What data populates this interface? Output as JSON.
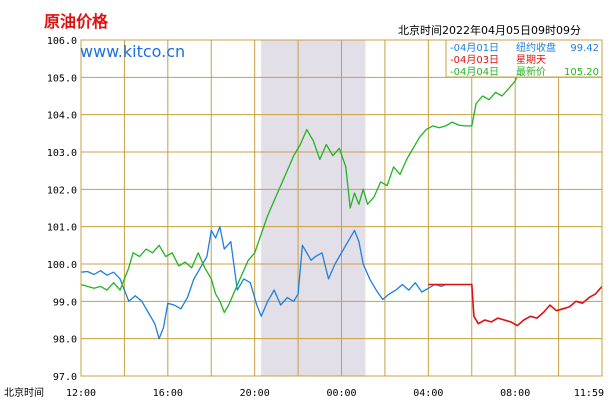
{
  "chart_data": {
    "type": "line",
    "title": "原油价格",
    "watermark": "www.kitco.cn",
    "timestamp": "北京时间2022年04月05日09时09分",
    "xlabel": "北京时间",
    "y_ticks": [
      "106.0",
      "105.0",
      "104.0",
      "103.0",
      "102.0",
      "101.0",
      "100.0",
      "99.0",
      "98.0",
      "97.0"
    ],
    "ylim": [
      97.0,
      106.0
    ],
    "x_ticks": [
      "12:00",
      "16:00",
      "20:00",
      "00:00",
      "04:00",
      "08:00",
      "11:59"
    ],
    "x_hours": [
      0,
      4,
      8,
      12,
      16,
      20,
      24
    ],
    "shaded_range_hours": [
      8.3,
      13.1
    ],
    "grid": true,
    "legend_position": "top-right",
    "legend": [
      {
        "date": "04月01日",
        "label": "纽约收盘",
        "value": "99.42",
        "color": "#1e7fe0"
      },
      {
        "date": "04月03日",
        "label": "星期天",
        "value": "",
        "color": "#e01010"
      },
      {
        "date": "04月04日",
        "label": "最新价",
        "value": "105.20",
        "color": "#22b422"
      }
    ],
    "series": [
      {
        "name": "04月01日",
        "color": "#1e7fe0",
        "points": [
          [
            0,
            99.78
          ],
          [
            0.3,
            99.8
          ],
          [
            0.6,
            99.72
          ],
          [
            0.9,
            99.82
          ],
          [
            1.2,
            99.7
          ],
          [
            1.5,
            99.78
          ],
          [
            1.8,
            99.6
          ],
          [
            2.0,
            99.3
          ],
          [
            2.2,
            99.0
          ],
          [
            2.5,
            99.15
          ],
          [
            2.8,
            99.0
          ],
          [
            3.1,
            98.7
          ],
          [
            3.4,
            98.4
          ],
          [
            3.6,
            98.0
          ],
          [
            3.8,
            98.3
          ],
          [
            4.0,
            98.95
          ],
          [
            4.3,
            98.9
          ],
          [
            4.6,
            98.8
          ],
          [
            4.9,
            99.1
          ],
          [
            5.2,
            99.6
          ],
          [
            5.5,
            99.9
          ],
          [
            5.8,
            100.2
          ],
          [
            6.0,
            100.9
          ],
          [
            6.2,
            100.7
          ],
          [
            6.4,
            101.0
          ],
          [
            6.6,
            100.4
          ],
          [
            6.9,
            100.6
          ],
          [
            7.2,
            99.3
          ],
          [
            7.5,
            99.6
          ],
          [
            7.8,
            99.5
          ],
          [
            8.1,
            98.9
          ],
          [
            8.3,
            98.6
          ],
          [
            8.6,
            99.0
          ],
          [
            8.9,
            99.3
          ],
          [
            9.2,
            98.9
          ],
          [
            9.5,
            99.1
          ],
          [
            9.8,
            99.0
          ],
          [
            10.0,
            99.2
          ],
          [
            10.2,
            100.5
          ],
          [
            10.4,
            100.3
          ],
          [
            10.6,
            100.1
          ],
          [
            10.8,
            100.2
          ],
          [
            11.1,
            100.3
          ],
          [
            11.4,
            99.6
          ],
          [
            11.7,
            100.0
          ],
          [
            12.0,
            100.3
          ],
          [
            12.3,
            100.6
          ],
          [
            12.6,
            100.9
          ],
          [
            12.8,
            100.6
          ],
          [
            13.0,
            100.0
          ],
          [
            13.3,
            99.6
          ],
          [
            13.6,
            99.3
          ],
          [
            13.9,
            99.05
          ],
          [
            14.2,
            99.2
          ],
          [
            14.5,
            99.3
          ],
          [
            14.8,
            99.45
          ],
          [
            15.1,
            99.3
          ],
          [
            15.4,
            99.5
          ],
          [
            15.7,
            99.25
          ],
          [
            16.0,
            99.35
          ],
          [
            16.3,
            99.45
          ],
          [
            16.6,
            99.4
          ],
          [
            16.8,
            99.45
          ]
        ]
      },
      {
        "name": "04月03日",
        "color": "#e01010",
        "points": [
          [
            16.0,
            99.45
          ],
          [
            16.8,
            99.45
          ],
          [
            17.6,
            99.45
          ],
          [
            18.0,
            99.45
          ],
          [
            18.1,
            98.6
          ],
          [
            18.3,
            98.4
          ],
          [
            18.6,
            98.5
          ],
          [
            18.9,
            98.45
          ],
          [
            19.2,
            98.55
          ],
          [
            19.5,
            98.5
          ],
          [
            19.8,
            98.45
          ],
          [
            20.1,
            98.35
          ],
          [
            20.4,
            98.5
          ],
          [
            20.7,
            98.6
          ],
          [
            21.0,
            98.55
          ],
          [
            21.3,
            98.7
          ],
          [
            21.6,
            98.9
          ],
          [
            21.9,
            98.75
          ],
          [
            22.2,
            98.8
          ],
          [
            22.5,
            98.85
          ],
          [
            22.8,
            99.0
          ],
          [
            23.1,
            98.95
          ],
          [
            23.4,
            99.1
          ],
          [
            23.7,
            99.2
          ],
          [
            24.0,
            99.4
          ]
        ]
      },
      {
        "name": "04月04日",
        "color": "#22b422",
        "points": [
          [
            0,
            99.45
          ],
          [
            0.3,
            99.4
          ],
          [
            0.6,
            99.35
          ],
          [
            0.9,
            99.4
          ],
          [
            1.2,
            99.3
          ],
          [
            1.5,
            99.5
          ],
          [
            1.8,
            99.3
          ],
          [
            2.0,
            99.6
          ],
          [
            2.2,
            99.9
          ],
          [
            2.4,
            100.3
          ],
          [
            2.7,
            100.2
          ],
          [
            3.0,
            100.4
          ],
          [
            3.3,
            100.3
          ],
          [
            3.6,
            100.5
          ],
          [
            3.9,
            100.2
          ],
          [
            4.2,
            100.3
          ],
          [
            4.5,
            99.95
          ],
          [
            4.8,
            100.05
          ],
          [
            5.1,
            99.9
          ],
          [
            5.4,
            100.3
          ],
          [
            5.7,
            99.9
          ],
          [
            6.0,
            99.6
          ],
          [
            6.2,
            99.2
          ],
          [
            6.4,
            99.0
          ],
          [
            6.6,
            98.7
          ],
          [
            6.8,
            98.9
          ],
          [
            7.1,
            99.3
          ],
          [
            7.4,
            99.7
          ],
          [
            7.7,
            100.1
          ],
          [
            8.0,
            100.3
          ],
          [
            8.3,
            100.8
          ],
          [
            8.6,
            101.3
          ],
          [
            8.9,
            101.7
          ],
          [
            9.2,
            102.1
          ],
          [
            9.5,
            102.5
          ],
          [
            9.8,
            102.9
          ],
          [
            10.1,
            103.2
          ],
          [
            10.4,
            103.6
          ],
          [
            10.7,
            103.3
          ],
          [
            11.0,
            102.8
          ],
          [
            11.3,
            103.2
          ],
          [
            11.6,
            102.9
          ],
          [
            11.9,
            103.1
          ],
          [
            12.2,
            102.6
          ],
          [
            12.4,
            101.5
          ],
          [
            12.6,
            101.9
          ],
          [
            12.8,
            101.6
          ],
          [
            13.0,
            102.0
          ],
          [
            13.2,
            101.6
          ],
          [
            13.5,
            101.8
          ],
          [
            13.8,
            102.2
          ],
          [
            14.1,
            102.1
          ],
          [
            14.4,
            102.6
          ],
          [
            14.7,
            102.4
          ],
          [
            15.0,
            102.8
          ],
          [
            15.3,
            103.1
          ],
          [
            15.6,
            103.4
          ],
          [
            15.9,
            103.6
          ],
          [
            16.2,
            103.7
          ],
          [
            16.5,
            103.65
          ],
          [
            16.8,
            103.7
          ],
          [
            17.1,
            103.8
          ],
          [
            17.4,
            103.72
          ],
          [
            17.7,
            103.7
          ],
          [
            18.0,
            103.7
          ],
          [
            18.2,
            104.3
          ],
          [
            18.5,
            104.5
          ],
          [
            18.8,
            104.4
          ],
          [
            19.1,
            104.6
          ],
          [
            19.4,
            104.5
          ],
          [
            19.7,
            104.7
          ],
          [
            20.0,
            104.9
          ],
          [
            20.2,
            105.2
          ]
        ]
      }
    ]
  }
}
